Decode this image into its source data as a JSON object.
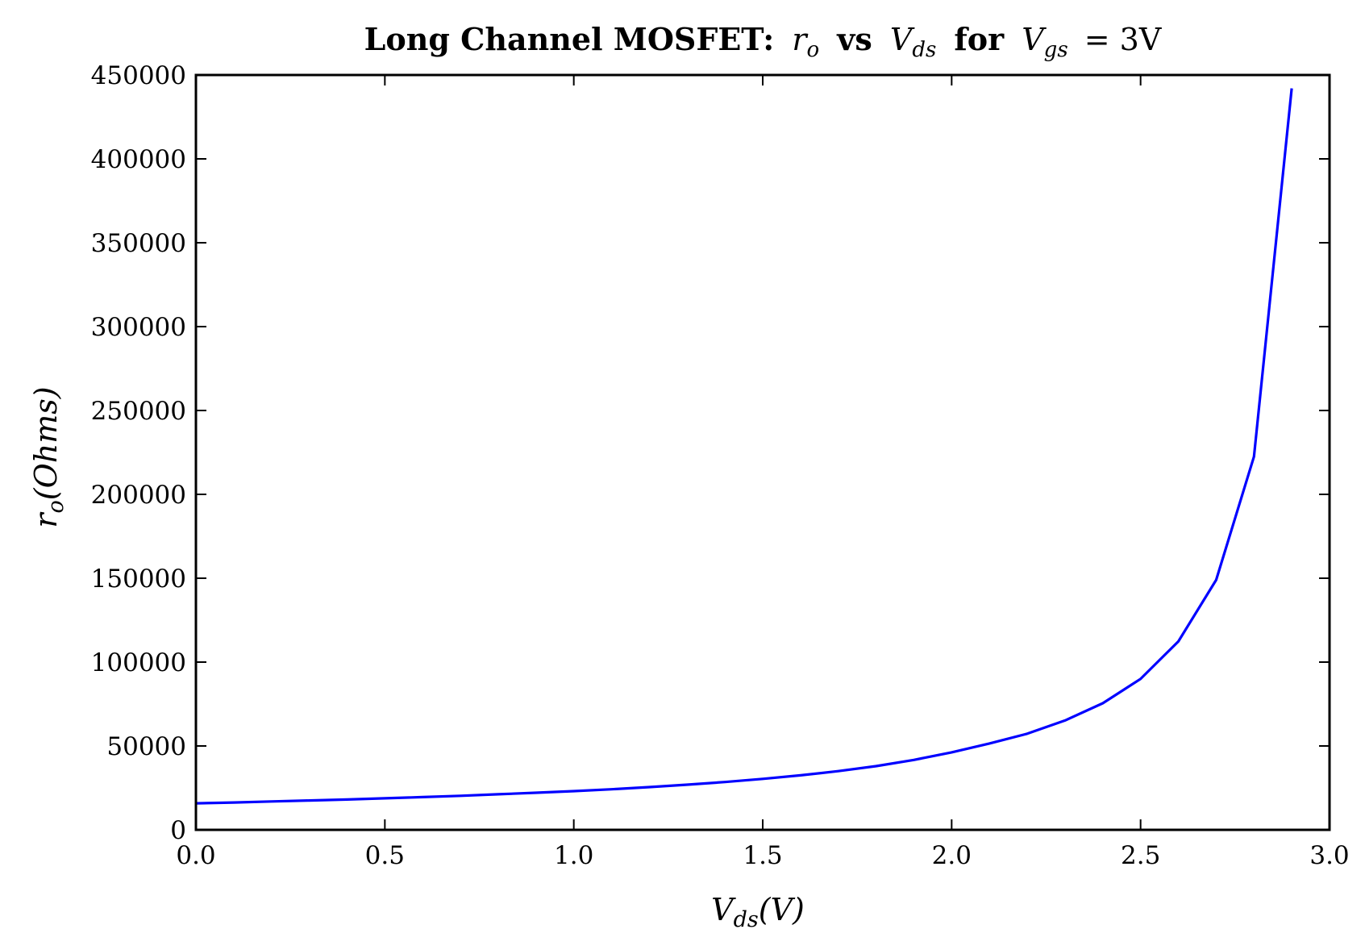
{
  "chart_data": {
    "type": "line",
    "title_bold": "Long Channel MOSFET:",
    "title_math_ro": "r",
    "title_math_ro_sub": "o",
    "title_vs": "vs",
    "title_math_vds": "V",
    "title_math_vds_sub": "ds",
    "title_for": "for",
    "title_math_vgs": "V",
    "title_math_vgs_sub": "gs",
    "title_math_eq": "= 3V",
    "xlabel_main": "V",
    "xlabel_sub": "ds",
    "xlabel_unit": "(V)",
    "ylabel_main": "r",
    "ylabel_sub": "o",
    "ylabel_unit": "(Ohms)",
    "xlim": [
      0.0,
      3.0
    ],
    "ylim": [
      0,
      450000
    ],
    "xticks": [
      0.0,
      0.5,
      1.0,
      1.5,
      2.0,
      2.5,
      3.0
    ],
    "xtick_labels": [
      "0.0",
      "0.5",
      "1.0",
      "1.5",
      "2.0",
      "2.5",
      "3.0"
    ],
    "yticks": [
      0,
      50000,
      100000,
      150000,
      200000,
      250000,
      300000,
      350000,
      400000,
      450000
    ],
    "ytick_labels": [
      "0",
      "50000",
      "100000",
      "150000",
      "200000",
      "250000",
      "300000",
      "350000",
      "400000",
      "450000"
    ],
    "grid": false,
    "series": [
      {
        "color": "#0000ff",
        "x": [
          0.0,
          0.1,
          0.2,
          0.3,
          0.4,
          0.5,
          0.6,
          0.7,
          0.8,
          0.9,
          1.0,
          1.1,
          1.2,
          1.3,
          1.4,
          1.5,
          1.6,
          1.7,
          1.8,
          1.9,
          2.0,
          2.1,
          2.2,
          2.3,
          2.4,
          2.5,
          2.6,
          2.7,
          2.8,
          2.9
        ],
        "y": [
          15800,
          16300,
          16900,
          17500,
          18100,
          18800,
          19500,
          20300,
          21200,
          22100,
          23100,
          24200,
          25500,
          26900,
          28500,
          30400,
          32500,
          35000,
          38000,
          41700,
          46200,
          51500,
          57300,
          65200,
          75500,
          90000,
          112300,
          149000,
          222500,
          442000
        ]
      }
    ]
  }
}
